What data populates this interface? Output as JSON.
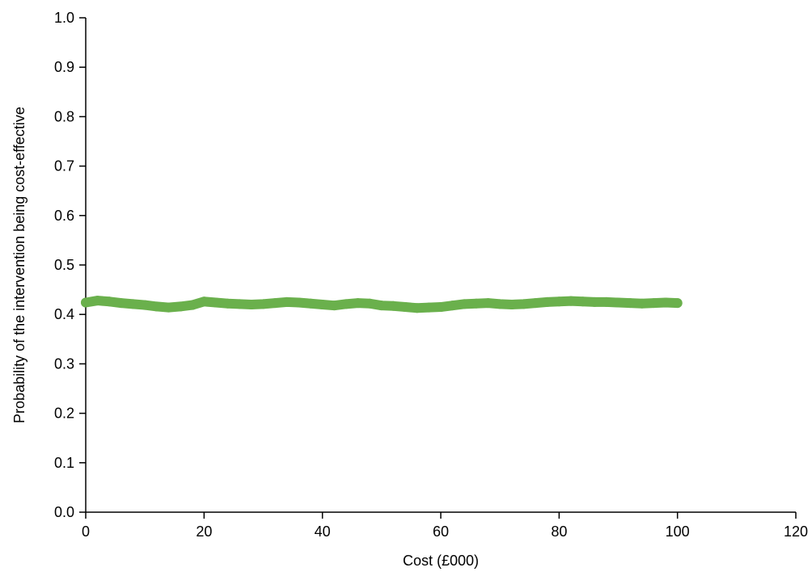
{
  "chart_data": {
    "type": "scatter",
    "title": "",
    "xlabel": "Cost (£000)",
    "ylabel": "Probability of the intervention being cost-effective",
    "xlim": [
      0,
      120
    ],
    "ylim": [
      0,
      1
    ],
    "x_ticks": [
      "0",
      "20",
      "40",
      "60",
      "80",
      "100",
      "120"
    ],
    "y_ticks": [
      "0.0",
      "0.1",
      "0.2",
      "0.3",
      "0.4",
      "0.5",
      "0.6",
      "0.7",
      "0.8",
      "0.9",
      "1.0"
    ],
    "grid": false,
    "legend": "none",
    "series": [
      {
        "color": "#6ab04c",
        "x": [
          0,
          2,
          4,
          6,
          8,
          10,
          12,
          14,
          16,
          18,
          20,
          22,
          24,
          26,
          28,
          30,
          32,
          34,
          36,
          38,
          40,
          42,
          44,
          46,
          48,
          50,
          52,
          54,
          56,
          58,
          60,
          62,
          64,
          66,
          68,
          70,
          72,
          74,
          76,
          78,
          80,
          82,
          84,
          86,
          88,
          90,
          92,
          94,
          96,
          98,
          100
        ],
        "y": [
          0.424,
          0.428,
          0.426,
          0.423,
          0.421,
          0.419,
          0.416,
          0.414,
          0.416,
          0.419,
          0.426,
          0.424,
          0.422,
          0.421,
          0.42,
          0.421,
          0.423,
          0.425,
          0.424,
          0.422,
          0.42,
          0.418,
          0.421,
          0.423,
          0.422,
          0.418,
          0.417,
          0.415,
          0.413,
          0.414,
          0.415,
          0.418,
          0.421,
          0.422,
          0.423,
          0.421,
          0.42,
          0.421,
          0.423,
          0.425,
          0.426,
          0.427,
          0.426,
          0.425,
          0.425,
          0.424,
          0.423,
          0.422,
          0.423,
          0.424,
          0.423
        ]
      }
    ]
  }
}
